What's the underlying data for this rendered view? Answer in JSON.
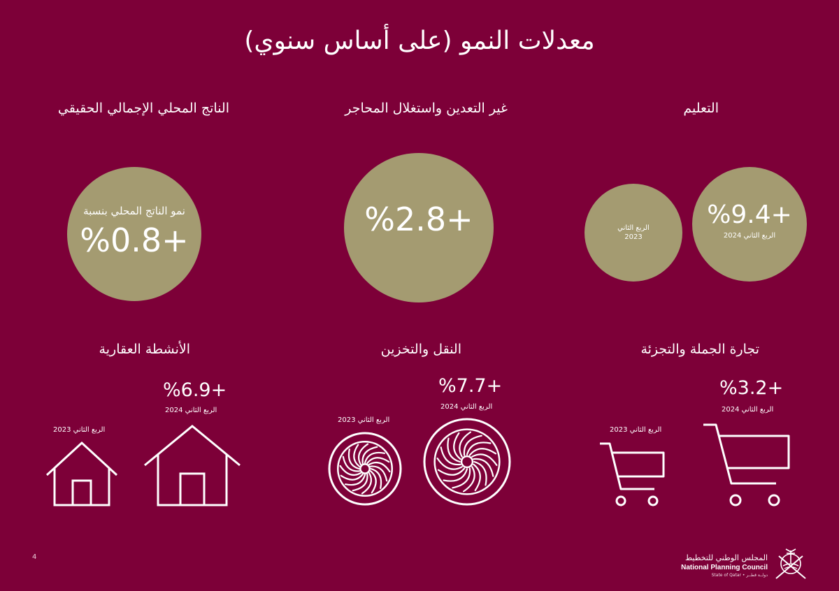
{
  "title": "معدلات النمو (على أساس سنوي)",
  "sections": {
    "gdp": {
      "heading": "الناتج المحلي الإجمالي الحقيقي",
      "label": "نمو الناتج المحلي بنسبة",
      "value": "%0.8+"
    },
    "non_mining": {
      "heading": "غير التعدين واستغلال المحاجر",
      "value": "%2.8+"
    },
    "education": {
      "heading": "التعليم",
      "q2_2024_value": "%9.4+",
      "q2_2024_label": "الربع الثاني 2024",
      "q2_2023_label": "الربع الثاني",
      "q2_2023_year": "2023"
    },
    "real_estate": {
      "heading": "الأنشطة العقارية",
      "value": "%6.9+",
      "q2_2024_label": "الربع الثاني 2024",
      "q2_2023_label": "الربع الثاني 2023"
    },
    "transport": {
      "heading": "النقل والتخزين",
      "value": "%7.7+",
      "q2_2024_label": "الربع الثاني 2024",
      "q2_2023_label": "الربع الثاني 2023"
    },
    "trade": {
      "heading": "تجارة الجملة والتجزئة",
      "value": "%3.2+",
      "q2_2024_label": "الربع الثاني 2024",
      "q2_2023_label": "الربع الثاني 2023"
    }
  },
  "icons": {
    "house": "house-icon",
    "turbine": "turbine-icon",
    "cart": "shopping-cart-icon",
    "emblem": "qatar-emblem-icon"
  },
  "footer": {
    "page_number": "4",
    "org_ar": "المجلس الوطني للتخطيط",
    "org_en": "National Planning Council",
    "state": "State of Qatar • دولــة قطــر"
  },
  "colors": {
    "background": "#7d0038",
    "circle": "#a49b71",
    "text": "#ffffff"
  }
}
